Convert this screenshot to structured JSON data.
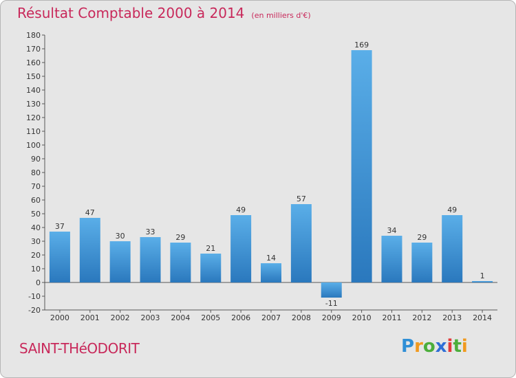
{
  "header": {
    "title": "Résultat Comptable 2000 à 2014",
    "subtitle": "(en milliers d'€)"
  },
  "footer": {
    "town": "SAINT-THéODORIT",
    "logo_letters": [
      "P",
      "r",
      "o",
      "x",
      "i",
      "t",
      "i"
    ],
    "logo_colors": [
      "#2f8fd6",
      "#f19a1f",
      "#4cae3c",
      "#2f6fd6",
      "#e23b3b",
      "#4cae3c",
      "#f19a1f"
    ]
  },
  "chart_data": {
    "type": "bar",
    "title": "Résultat Comptable 2000 à 2014",
    "subtitle": "(en milliers d'€)",
    "categories": [
      "2000",
      "2001",
      "2002",
      "2003",
      "2004",
      "2005",
      "2006",
      "2007",
      "2008",
      "2009",
      "2010",
      "2011",
      "2012",
      "2013",
      "2014"
    ],
    "values": [
      37,
      47,
      30,
      33,
      29,
      21,
      49,
      14,
      57,
      -11,
      169,
      34,
      29,
      49,
      1
    ],
    "value_labels": [
      "37",
      "47",
      "30",
      "33",
      "29",
      "21",
      "49",
      "14",
      "57",
      "-11",
      "169",
      "34",
      "29",
      "49",
      "1"
    ],
    "yticks": [
      "-20",
      "-10",
      "0",
      "10",
      "20",
      "30",
      "40",
      "50",
      "60",
      "70",
      "80",
      "90",
      "100",
      "110",
      "120",
      "130",
      "140",
      "150",
      "160",
      "170",
      "180"
    ],
    "ylim": [
      -20,
      180
    ],
    "xlabel": "",
    "ylabel": "",
    "grid": false,
    "bar_color_light": "#5aaee8",
    "bar_color_dark": "#2a78bd"
  }
}
